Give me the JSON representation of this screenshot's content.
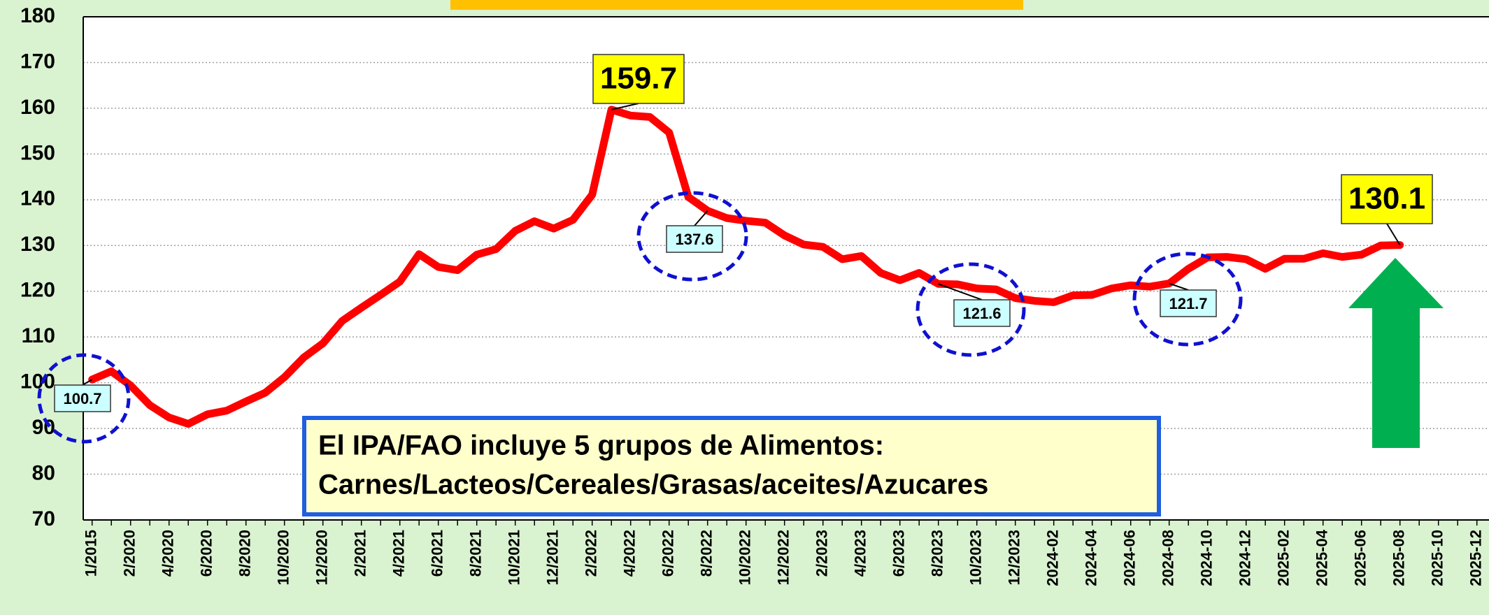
{
  "chart_data": {
    "type": "line",
    "categories": [
      "1/2015",
      null,
      "2/2020",
      null,
      "4/2020",
      null,
      "6/2020",
      null,
      "8/2020",
      null,
      "10/2020",
      null,
      "12/2020",
      null,
      "2/2021",
      null,
      "4/2021",
      null,
      "6/2021",
      null,
      "8/2021",
      null,
      "10/2021",
      null,
      "12/2021",
      null,
      "2/2022",
      null,
      "4/2022",
      null,
      "6/2022",
      null,
      "8/2022",
      null,
      "10/2022",
      null,
      "12/2022",
      null,
      "2/2023",
      null,
      "4/2023",
      null,
      "6/2023",
      null,
      "8/2023",
      null,
      "10/2023",
      null,
      "12/2023",
      null,
      "2024-02",
      null,
      "2024-04",
      null,
      "2024-06",
      null,
      "2024-08",
      null,
      "2024-10",
      null,
      "2024-12",
      null,
      "2025-02",
      null,
      "2025-04",
      null,
      "2025-06",
      null,
      "2025-08",
      null,
      "2025-10",
      null,
      "2025-12"
    ],
    "series": [
      {
        "name": "IPA/FAO",
        "color": "#ff0000",
        "values": [
          100.7,
          102.5,
          99.4,
          95.1,
          92.4,
          91.0,
          93.1,
          93.9,
          95.9,
          97.8,
          101.2,
          105.5,
          108.6,
          113.5,
          116.4,
          119.2,
          122.1,
          128.1,
          125.3,
          124.6,
          128.0,
          129.2,
          133.2,
          135.3,
          133.7,
          135.6,
          141.1,
          159.7,
          158.4,
          158.1,
          154.7,
          140.6,
          137.6,
          136.0,
          135.4,
          135.0,
          132.2,
          130.2,
          129.7,
          127.0,
          127.7,
          124.0,
          122.4,
          124.0,
          121.6,
          121.5,
          120.6,
          120.4,
          118.5,
          117.9,
          117.6,
          119.1,
          119.2,
          120.6,
          121.3,
          121.0,
          121.7,
          124.9,
          127.4,
          127.5,
          127.0,
          124.9,
          127.1,
          127.1,
          128.3,
          127.5,
          128.0,
          130.0,
          130.1,
          null,
          null,
          null,
          null
        ]
      }
    ],
    "ylim": [
      70,
      180
    ],
    "yticks": [
      70,
      80,
      90,
      100,
      110,
      120,
      130,
      140,
      150,
      160,
      170,
      180
    ],
    "grid": true,
    "annotation": [
      "El IPA/FAO incluye 5 grupos de Alimentos:",
      "Carnes/Lacteos/Cereales/Grasas/aceites/Azucares"
    ]
  }
}
